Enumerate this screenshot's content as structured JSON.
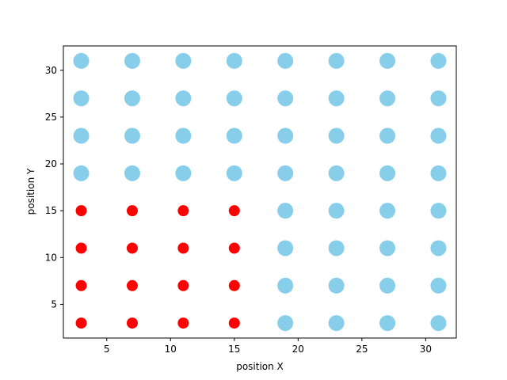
{
  "chart_data": {
    "type": "scatter",
    "title": "",
    "xlabel": "position X",
    "ylabel": "position Y",
    "xlim": [
      1.6,
      32.4
    ],
    "ylim": [
      1.4,
      32.6
    ],
    "x_ticks": [
      5,
      10,
      15,
      20,
      25,
      30
    ],
    "y_ticks": [
      5,
      10,
      15,
      20,
      25,
      30
    ],
    "grid": false,
    "series": [
      {
        "color": "#ff0000",
        "marker_size": "small",
        "points": [
          [
            3,
            3
          ],
          [
            7,
            3
          ],
          [
            11,
            3
          ],
          [
            15,
            3
          ],
          [
            3,
            7
          ],
          [
            7,
            7
          ],
          [
            11,
            7
          ],
          [
            15,
            7
          ],
          [
            3,
            11
          ],
          [
            7,
            11
          ],
          [
            11,
            11
          ],
          [
            15,
            11
          ],
          [
            3,
            15
          ],
          [
            7,
            15
          ],
          [
            11,
            15
          ],
          [
            15,
            15
          ]
        ]
      },
      {
        "color": "#87ceeb",
        "marker_size": "large",
        "points": [
          [
            19,
            3
          ],
          [
            23,
            3
          ],
          [
            27,
            3
          ],
          [
            31,
            3
          ],
          [
            19,
            7
          ],
          [
            23,
            7
          ],
          [
            27,
            7
          ],
          [
            31,
            7
          ],
          [
            19,
            11
          ],
          [
            23,
            11
          ],
          [
            27,
            11
          ],
          [
            31,
            11
          ],
          [
            19,
            15
          ],
          [
            23,
            15
          ],
          [
            27,
            15
          ],
          [
            31,
            15
          ],
          [
            3,
            19
          ],
          [
            7,
            19
          ],
          [
            11,
            19
          ],
          [
            15,
            19
          ],
          [
            19,
            19
          ],
          [
            23,
            19
          ],
          [
            27,
            19
          ],
          [
            31,
            19
          ],
          [
            3,
            23
          ],
          [
            7,
            23
          ],
          [
            11,
            23
          ],
          [
            15,
            23
          ],
          [
            19,
            23
          ],
          [
            23,
            23
          ],
          [
            27,
            23
          ],
          [
            31,
            23
          ],
          [
            3,
            27
          ],
          [
            7,
            27
          ],
          [
            11,
            27
          ],
          [
            15,
            27
          ],
          [
            19,
            27
          ],
          [
            23,
            27
          ],
          [
            27,
            27
          ],
          [
            31,
            27
          ],
          [
            3,
            31
          ],
          [
            7,
            31
          ],
          [
            11,
            31
          ],
          [
            15,
            31
          ],
          [
            19,
            31
          ],
          [
            23,
            31
          ],
          [
            27,
            31
          ],
          [
            31,
            31
          ]
        ]
      }
    ]
  }
}
